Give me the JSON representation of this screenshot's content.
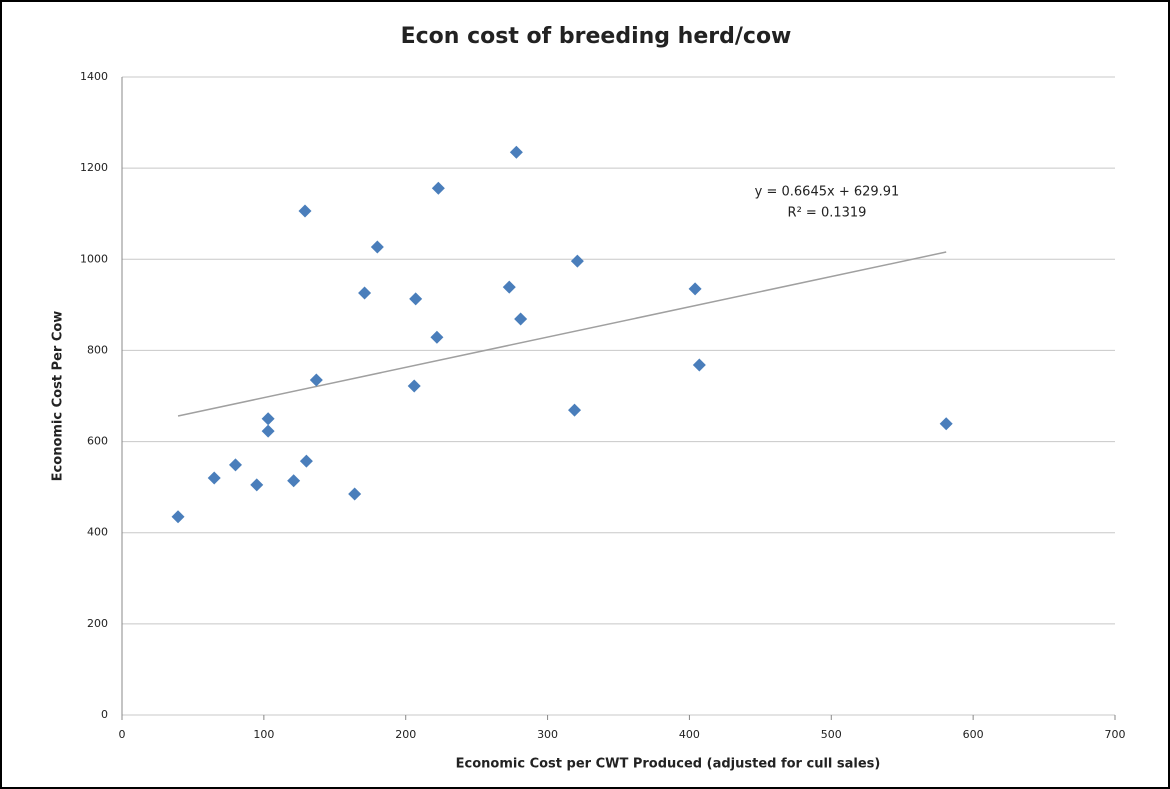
{
  "chart_data": {
    "type": "scatter",
    "title": "Econ cost of breeding herd/cow",
    "x_label": "Economic Cost per CWT Produced (adjusted for cull sales)",
    "y_label": "Economic Cost Per Cow",
    "series": [
      {
        "color": "#4a7ebb",
        "x": [
          39.5,
          65,
          80,
          95,
          103,
          103,
          121,
          129,
          130,
          137,
          164,
          171,
          180,
          206,
          207,
          222,
          223,
          273,
          278,
          281,
          319,
          321,
          404,
          407,
          581
        ],
        "values": [
          435,
          520,
          549,
          505,
          650,
          623,
          514,
          1106,
          557,
          735,
          485,
          926,
          1027,
          722,
          913,
          829,
          1156,
          939,
          1235,
          869,
          669,
          996,
          935,
          768,
          639
        ]
      }
    ],
    "trendline": {
      "slope": 0.6645,
      "intercept": 629.91,
      "color": "#a0a0a0",
      "equation": "y = 0.6645x + 629.91",
      "r_squared": "R² = 0.1319"
    },
    "xlim": [
      0,
      700
    ],
    "xticks": [
      0,
      100,
      200,
      300,
      400,
      500,
      600,
      700
    ],
    "ylim": [
      0,
      1400
    ],
    "yticks": [
      0,
      200,
      400,
      600,
      800,
      1000,
      1200,
      1400
    ],
    "grid": true
  }
}
